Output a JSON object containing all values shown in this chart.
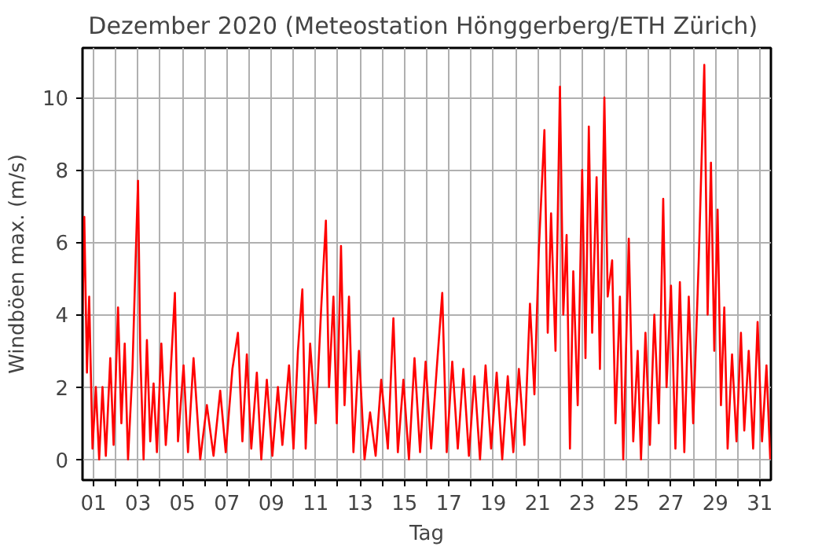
{
  "chart_data": {
    "type": "line",
    "title": "Dezember 2020  (Meteostation Hönggerberg/ETH Zürich)",
    "xlabel": "Tag",
    "ylabel": "Windböen max. (m/s)",
    "xlim": [
      1,
      32
    ],
    "ylim": [
      -0.57,
      11.37
    ],
    "xticks": [
      {
        "value": 1.5,
        "label": "01"
      },
      {
        "value": 2.5,
        "label": null
      },
      {
        "value": 3.5,
        "label": "03"
      },
      {
        "value": 4.5,
        "label": null
      },
      {
        "value": 5.5,
        "label": "05"
      },
      {
        "value": 6.5,
        "label": null
      },
      {
        "value": 7.5,
        "label": "07"
      },
      {
        "value": 8.5,
        "label": null
      },
      {
        "value": 9.5,
        "label": "09"
      },
      {
        "value": 10.5,
        "label": null
      },
      {
        "value": 11.5,
        "label": "11"
      },
      {
        "value": 12.5,
        "label": null
      },
      {
        "value": 13.5,
        "label": "13"
      },
      {
        "value": 14.5,
        "label": null
      },
      {
        "value": 15.5,
        "label": "15"
      },
      {
        "value": 16.5,
        "label": null
      },
      {
        "value": 17.5,
        "label": "17"
      },
      {
        "value": 18.5,
        "label": null
      },
      {
        "value": 19.5,
        "label": "19"
      },
      {
        "value": 20.5,
        "label": null
      },
      {
        "value": 21.5,
        "label": "21"
      },
      {
        "value": 22.5,
        "label": null
      },
      {
        "value": 23.5,
        "label": "23"
      },
      {
        "value": 24.5,
        "label": null
      },
      {
        "value": 25.5,
        "label": "25"
      },
      {
        "value": 26.5,
        "label": null
      },
      {
        "value": 27.5,
        "label": "27"
      },
      {
        "value": 28.5,
        "label": null
      },
      {
        "value": 29.5,
        "label": "29"
      },
      {
        "value": 30.5,
        "label": null
      },
      {
        "value": 31.5,
        "label": "31"
      }
    ],
    "yticks": [
      0,
      2,
      4,
      6,
      8,
      10
    ],
    "grid": true,
    "marker": "none",
    "line_style": "solid",
    "x": [
      1.0,
      1.08,
      1.2,
      1.3,
      1.45,
      1.6,
      1.75,
      1.9,
      2.05,
      2.25,
      2.4,
      2.6,
      2.75,
      2.9,
      3.05,
      3.25,
      3.4,
      3.5,
      3.6,
      3.75,
      3.9,
      4.05,
      4.2,
      4.35,
      4.55,
      4.75,
      4.95,
      5.16,
      5.3,
      5.55,
      5.75,
      6.0,
      6.3,
      6.6,
      6.9,
      7.2,
      7.45,
      7.75,
      8.0,
      8.2,
      8.4,
      8.6,
      8.85,
      9.05,
      9.3,
      9.55,
      9.8,
      10.0,
      10.3,
      10.5,
      10.7,
      10.9,
      11.05,
      11.25,
      11.5,
      11.75,
      11.96,
      12.1,
      12.3,
      12.45,
      12.64,
      12.8,
      13.0,
      13.2,
      13.45,
      13.7,
      13.95,
      14.2,
      14.45,
      14.75,
      15.0,
      15.2,
      15.45,
      15.7,
      15.95,
      16.2,
      16.45,
      16.7,
      16.95,
      17.2,
      17.4,
      17.65,
      17.9,
      18.15,
      18.4,
      18.65,
      18.9,
      19.15,
      19.4,
      19.65,
      19.9,
      20.15,
      20.4,
      20.65,
      20.9,
      21.15,
      21.35,
      21.55,
      21.8,
      21.95,
      22.1,
      22.3,
      22.5,
      22.65,
      22.8,
      22.95,
      23.1,
      23.3,
      23.5,
      23.65,
      23.8,
      23.95,
      24.15,
      24.3,
      24.5,
      24.65,
      24.85,
      25.0,
      25.2,
      25.35,
      25.6,
      25.8,
      26.0,
      26.15,
      26.35,
      26.55,
      26.75,
      26.95,
      27.15,
      27.3,
      27.5,
      27.7,
      27.9,
      28.1,
      28.3,
      28.5,
      28.75,
      29.0,
      29.15,
      29.3,
      29.45,
      29.6,
      29.75,
      29.9,
      30.05,
      30.25,
      30.45,
      30.65,
      30.8,
      31.0,
      31.2,
      31.4,
      31.6,
      31.8,
      31.97
    ],
    "values": [
      4.0,
      6.7,
      2.4,
      4.5,
      0.3,
      2.0,
      0.0,
      2.0,
      0.1,
      2.8,
      0.4,
      4.2,
      1.0,
      3.2,
      0.0,
      2.5,
      5.7,
      7.7,
      3.0,
      0.0,
      3.3,
      0.5,
      2.1,
      0.2,
      3.2,
      0.4,
      2.2,
      4.6,
      0.5,
      2.6,
      0.2,
      2.8,
      0.0,
      1.5,
      0.1,
      1.9,
      0.2,
      2.5,
      3.5,
      0.5,
      2.9,
      0.3,
      2.4,
      0.0,
      2.2,
      0.1,
      2.0,
      0.4,
      2.6,
      0.3,
      3.0,
      4.7,
      0.3,
      3.2,
      1.0,
      4.2,
      6.6,
      2.0,
      4.5,
      1.0,
      5.9,
      1.5,
      4.5,
      0.2,
      3.0,
      0.0,
      1.3,
      0.1,
      2.2,
      0.3,
      3.9,
      0.2,
      2.2,
      0.0,
      2.8,
      0.2,
      2.7,
      0.3,
      2.5,
      4.6,
      0.2,
      2.7,
      0.3,
      2.5,
      0.1,
      2.3,
      0.0,
      2.6,
      0.3,
      2.4,
      0.0,
      2.3,
      0.2,
      2.5,
      0.4,
      4.3,
      1.8,
      5.8,
      9.1,
      3.5,
      6.8,
      3.0,
      10.3,
      4.0,
      6.2,
      0.3,
      5.2,
      1.5,
      8.0,
      2.8,
      9.2,
      3.5,
      7.8,
      2.5,
      10.0,
      4.5,
      5.5,
      1.0,
      4.5,
      0.0,
      6.1,
      0.5,
      3.0,
      0.0,
      3.5,
      0.4,
      4.0,
      1.0,
      7.2,
      2.0,
      4.8,
      0.3,
      4.9,
      0.2,
      4.5,
      1.0,
      5.5,
      10.9,
      4.0,
      8.2,
      3.0,
      6.9,
      1.5,
      4.2,
      0.3,
      2.9,
      0.5,
      3.5,
      0.8,
      3.0,
      0.3,
      3.8,
      0.5,
      2.6,
      0.0
    ],
    "color": "#ff0000"
  }
}
